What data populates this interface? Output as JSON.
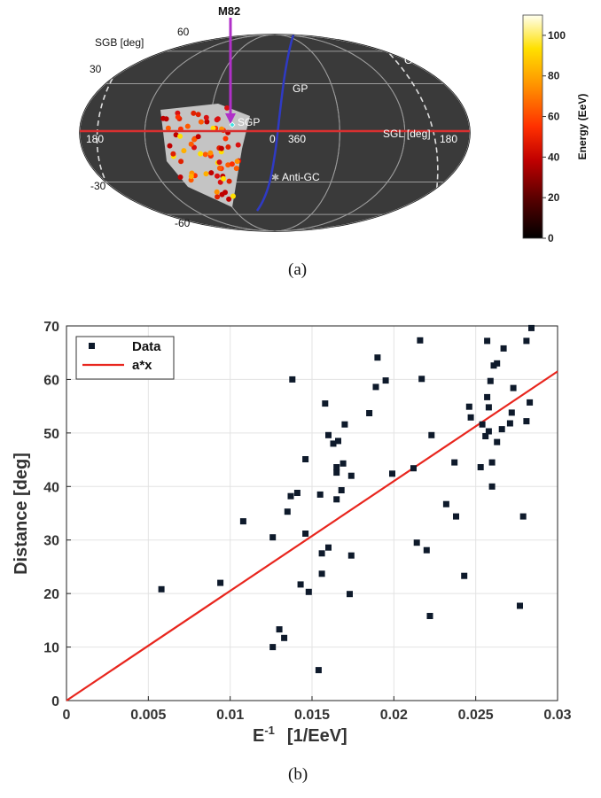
{
  "figure": {
    "caption_a": "(a)",
    "caption_b": "(b)"
  },
  "chart_data": [
    {
      "type": "scatter",
      "panel": "a",
      "projection": "aitoff",
      "background": "#3a3a3a",
      "colorbar": {
        "label": "Energy  (EeV)",
        "ticks": [
          "0",
          "20",
          "40",
          "60",
          "80",
          "100"
        ],
        "range": [
          0,
          110
        ],
        "colors": [
          "#000000",
          "#5a0000",
          "#c00000",
          "#ff3000",
          "#ff9000",
          "#ffe000",
          "#fffff0"
        ]
      },
      "annotations": {
        "m82": "M82",
        "sgb_label": "SGB [deg]",
        "sgl_label": "SGL [deg]",
        "gp": "GP",
        "sgp": "SGP",
        "gc": "GC",
        "anti_gc": "Anti-GC",
        "lat_60": "60",
        "lat_30": "30",
        "lat_m30": "-30",
        "lat_m60": "-60",
        "lon_180_left": "180",
        "lon_0": "0",
        "lon_360": "360",
        "lon_180_right": "180"
      },
      "events": {
        "count": 72,
        "energy_range": [
          57,
          110
        ]
      }
    },
    {
      "type": "scatter",
      "panel": "b",
      "xlabel": "E-1  [1/EeV]",
      "xlabel_main": "E",
      "xlabel_sup": "-1",
      "xlabel_unit": "[1/EeV]",
      "ylabel": "Distance  [deg]",
      "xlim": [
        0,
        0.03
      ],
      "ylim": [
        0,
        70
      ],
      "xticks": [
        "0",
        "0.005",
        "0.01",
        "0.015",
        "0.02",
        "0.025",
        "0.03"
      ],
      "yticks": [
        "0",
        "10",
        "20",
        "30",
        "40",
        "50",
        "60",
        "70"
      ],
      "grid": true,
      "legend": {
        "placement": "top-left",
        "entries": [
          "Data",
          "a*x"
        ]
      },
      "fit": {
        "name": "a*x",
        "slope": 2050,
        "color": "#e8261e"
      },
      "series": [
        {
          "name": "Data",
          "points": [
            [
              0.0058,
              20.8
            ],
            [
              0.0094,
              22.0
            ],
            [
              0.0108,
              33.5
            ],
            [
              0.0126,
              30.5
            ],
            [
              0.0126,
              10.0
            ],
            [
              0.013,
              13.3
            ],
            [
              0.0133,
              11.7
            ],
            [
              0.0135,
              35.3
            ],
            [
              0.0137,
              38.2
            ],
            [
              0.0138,
              60.0
            ],
            [
              0.0141,
              38.8
            ],
            [
              0.0143,
              21.7
            ],
            [
              0.0146,
              31.2
            ],
            [
              0.0146,
              45.1
            ],
            [
              0.0148,
              20.3
            ],
            [
              0.0154,
              5.7
            ],
            [
              0.0155,
              38.5
            ],
            [
              0.0156,
              27.5
            ],
            [
              0.0156,
              23.7
            ],
            [
              0.0158,
              55.5
            ],
            [
              0.016,
              49.6
            ],
            [
              0.016,
              28.6
            ],
            [
              0.0163,
              48.0
            ],
            [
              0.0165,
              43.6
            ],
            [
              0.0165,
              37.6
            ],
            [
              0.0165,
              42.6
            ],
            [
              0.0166,
              48.5
            ],
            [
              0.0168,
              39.3
            ],
            [
              0.0169,
              44.3
            ],
            [
              0.017,
              51.6
            ],
            [
              0.0173,
              19.9
            ],
            [
              0.0174,
              27.1
            ],
            [
              0.0174,
              42.0
            ],
            [
              0.0185,
              53.7
            ],
            [
              0.0189,
              58.6
            ],
            [
              0.019,
              64.1
            ],
            [
              0.0195,
              59.8
            ],
            [
              0.0199,
              42.4
            ],
            [
              0.0212,
              43.4
            ],
            [
              0.0214,
              29.5
            ],
            [
              0.0216,
              67.3
            ],
            [
              0.0217,
              60.1
            ],
            [
              0.022,
              28.1
            ],
            [
              0.0222,
              15.8
            ],
            [
              0.0223,
              49.6
            ],
            [
              0.0232,
              36.7
            ],
            [
              0.0237,
              44.5
            ],
            [
              0.0238,
              34.4
            ],
            [
              0.0243,
              23.3
            ],
            [
              0.0246,
              54.9
            ],
            [
              0.0247,
              52.9
            ],
            [
              0.0253,
              43.6
            ],
            [
              0.0254,
              51.6
            ],
            [
              0.0256,
              49.4
            ],
            [
              0.0257,
              67.2
            ],
            [
              0.0257,
              56.7
            ],
            [
              0.0258,
              54.8
            ],
            [
              0.0258,
              50.3
            ],
            [
              0.0259,
              59.7
            ],
            [
              0.026,
              40.0
            ],
            [
              0.026,
              44.5
            ],
            [
              0.0261,
              62.6
            ],
            [
              0.0263,
              63.0
            ],
            [
              0.0263,
              48.3
            ],
            [
              0.0266,
              50.7
            ],
            [
              0.0267,
              65.8
            ],
            [
              0.0271,
              51.8
            ],
            [
              0.0272,
              53.8
            ],
            [
              0.0273,
              58.4
            ],
            [
              0.0277,
              17.7
            ],
            [
              0.0279,
              34.4
            ],
            [
              0.0281,
              67.2
            ],
            [
              0.0281,
              52.2
            ],
            [
              0.0283,
              55.7
            ],
            [
              0.0284,
              69.6
            ]
          ]
        }
      ]
    }
  ]
}
